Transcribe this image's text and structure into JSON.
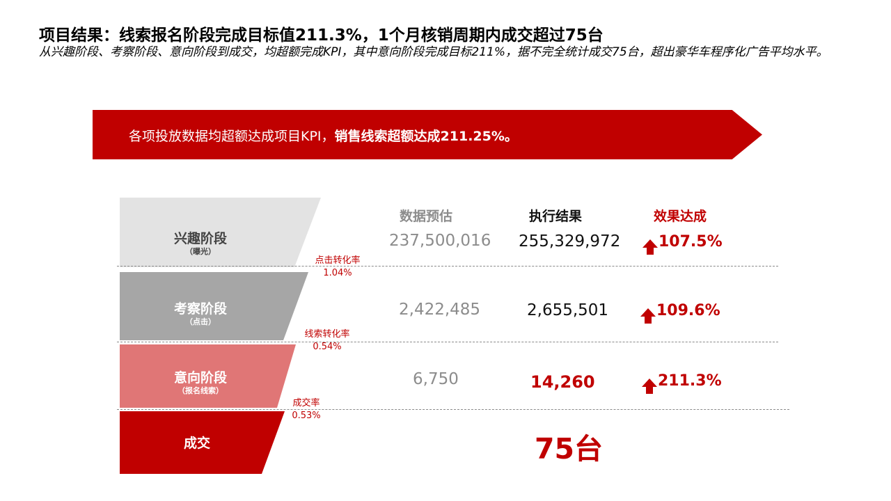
{
  "header": {
    "title": "项目结果：线索报名阶段完成目标值211.3%，1个月核销周期内成交超过75台",
    "subtitle": "从兴趣阶段、考察阶段、意向阶段到成交，均超额完成KPI，其中意向阶段完成目标211%，据不完全统计成交75台，超出豪华车程序化广告平均水平。"
  },
  "banner": {
    "text_normal": "各项投放数据均超额达成项目KPI，",
    "text_bold": "销售线索超额达成211.25%。"
  },
  "columns": {
    "estimate": "数据预估",
    "result": "执行结果",
    "effect": "效果达成"
  },
  "stages": [
    {
      "name": "兴趣阶段",
      "sub": "（曝光）",
      "estimate": "237,500,016",
      "result": "255,329,972",
      "effect": "107.5%",
      "color": "#e3e3e3",
      "text_color": "#444444"
    },
    {
      "name": "考察阶段",
      "sub": "（点击）",
      "estimate": "2,422,485",
      "result": "2,655,501",
      "effect": "109.6%",
      "color": "#a6a6a6",
      "text_color": "#ffffff"
    },
    {
      "name": "意向阶段",
      "sub": "（报名线索）",
      "estimate": "6,750",
      "result": "14,260",
      "effect": "211.3%",
      "color": "#e07676",
      "text_color": "#ffffff"
    },
    {
      "name": "成交",
      "sub": "",
      "result": "75台",
      "color": "#c00000",
      "text_color": "#ffffff"
    }
  ],
  "rates": [
    {
      "label": "点击转化率",
      "value": "1.04%"
    },
    {
      "label": "线索转化率",
      "value": "0.54%"
    },
    {
      "label": "成交率",
      "value": "0.53%"
    }
  ],
  "colors": {
    "accent": "#c00000"
  }
}
